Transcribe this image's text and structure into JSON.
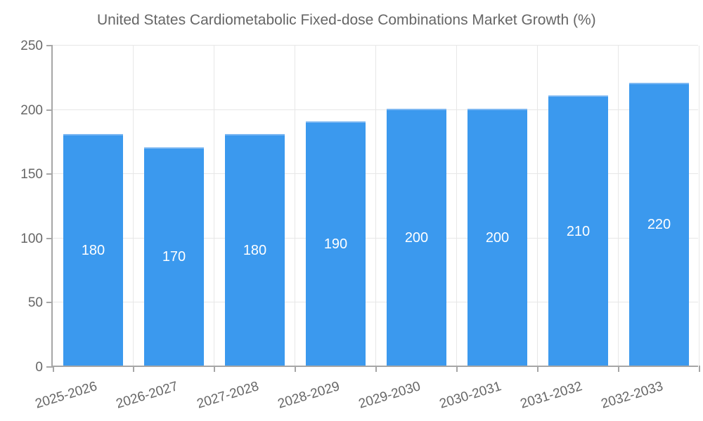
{
  "colors": {
    "bar": "#3b99ee",
    "bar_border": "#7db8f2",
    "axis": "#a6a6a6",
    "gridline": "#e7e7e7",
    "label_text": "#666666",
    "bar_value_text": "#ffffff"
  },
  "legend": {
    "label": "United States Cardiometabolic Fixed-dose Combinations Market Growth (%)"
  },
  "chart_data": {
    "type": "bar",
    "title": "United States Cardiometabolic Fixed-dose Combinations Market Growth (%)",
    "categories": [
      "2025-2026",
      "2026-2027",
      "2027-2028",
      "2028-2029",
      "2029-2030",
      "2030-2031",
      "2031-2032",
      "2032-2033"
    ],
    "values": [
      180,
      170,
      180,
      190,
      200,
      200,
      210,
      220
    ],
    "value_labels": [
      "180",
      "170",
      "180",
      "190",
      "200",
      "200",
      "210",
      "220"
    ],
    "xlabel": "",
    "ylabel": "",
    "ylim": [
      0,
      250
    ],
    "y_ticks": [
      0,
      50,
      100,
      150,
      200,
      250
    ],
    "grid": true,
    "legend_position": "top-left",
    "bar_color": "#3b99ee",
    "value_label_position": "center-inside"
  }
}
